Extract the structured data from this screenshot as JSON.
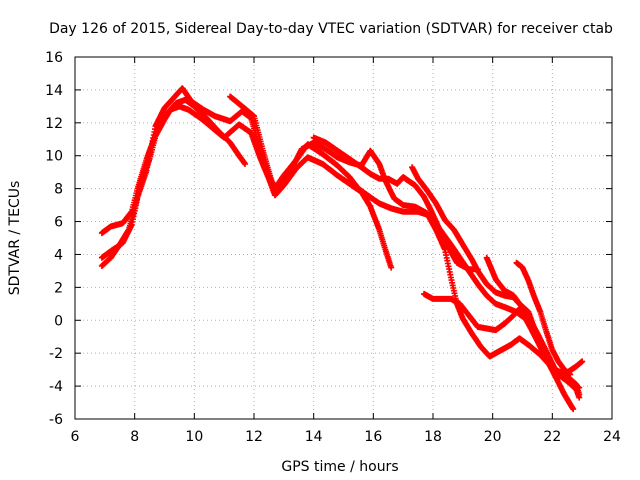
{
  "chart_data": {
    "type": "scatter",
    "title": "Day 126 of 2015, Sidereal Day-to-day VTEC variation (SDTVAR) for receiver ctab",
    "xlabel": "GPS time / hours",
    "ylabel": "SDTVAR / TECUs",
    "xlim": [
      6,
      24
    ],
    "ylim": [
      -6,
      16
    ],
    "xticks": [
      6,
      8,
      10,
      12,
      14,
      16,
      18,
      20,
      22,
      24
    ],
    "yticks": [
      -6,
      -4,
      -2,
      0,
      2,
      4,
      6,
      8,
      10,
      12,
      14,
      16
    ],
    "grid": true,
    "marker": "+",
    "color": "#ff0000",
    "series": [
      {
        "name": "s1",
        "points": [
          [
            6.9,
            3.3
          ],
          [
            7.2,
            3.8
          ],
          [
            7.5,
            4.6
          ],
          [
            7.8,
            5.5
          ],
          [
            8.0,
            6.8
          ],
          [
            8.2,
            8.3
          ],
          [
            8.5,
            9.8
          ],
          [
            8.7,
            11.2
          ],
          [
            9.0,
            12.2
          ],
          [
            9.2,
            12.8
          ],
          [
            9.5,
            13.0
          ],
          [
            9.8,
            12.8
          ],
          [
            10.2,
            12.3
          ],
          [
            10.6,
            11.7
          ],
          [
            11.0,
            11.1
          ],
          [
            11.5,
            11.9
          ],
          [
            11.9,
            11.4
          ],
          [
            12.2,
            9.9
          ],
          [
            12.5,
            8.6
          ],
          [
            12.7,
            7.6
          ],
          [
            13.0,
            8.2
          ],
          [
            13.4,
            9.2
          ],
          [
            13.8,
            9.9
          ],
          [
            14.3,
            9.5
          ],
          [
            14.8,
            8.8
          ],
          [
            15.2,
            8.3
          ],
          [
            15.6,
            7.8
          ],
          [
            15.9,
            6.9
          ],
          [
            16.2,
            5.5
          ],
          [
            16.4,
            4.3
          ],
          [
            16.6,
            3.2
          ]
        ]
      },
      {
        "name": "s2",
        "points": [
          [
            6.9,
            3.8
          ],
          [
            7.2,
            4.2
          ],
          [
            7.6,
            4.7
          ],
          [
            7.9,
            5.8
          ],
          [
            8.1,
            7.5
          ],
          [
            8.4,
            9.1
          ],
          [
            8.7,
            11.8
          ],
          [
            9.0,
            12.9
          ],
          [
            9.3,
            13.5
          ],
          [
            9.6,
            14.1
          ],
          [
            9.9,
            13.3
          ],
          [
            10.3,
            12.8
          ],
          [
            10.7,
            12.4
          ],
          [
            11.2,
            12.1
          ],
          [
            11.6,
            12.7
          ],
          [
            11.9,
            12.3
          ],
          [
            12.2,
            10.4
          ],
          [
            12.5,
            8.8
          ],
          [
            12.7,
            8.0
          ],
          [
            13.0,
            8.8
          ],
          [
            13.4,
            9.7
          ],
          [
            13.8,
            10.7
          ],
          [
            14.3,
            10.1
          ],
          [
            14.8,
            9.4
          ],
          [
            15.2,
            8.7
          ],
          [
            15.5,
            8.0
          ],
          [
            15.8,
            7.6
          ],
          [
            16.2,
            7.1
          ],
          [
            16.6,
            6.8
          ],
          [
            17.0,
            6.6
          ],
          [
            17.5,
            6.6
          ],
          [
            18.0,
            6.3
          ],
          [
            18.2,
            5.3
          ],
          [
            18.5,
            4.5
          ],
          [
            18.8,
            3.5
          ],
          [
            19.2,
            3.1
          ],
          [
            19.5,
            3.1
          ]
        ]
      },
      {
        "name": "s3",
        "points": [
          [
            6.9,
            5.3
          ],
          [
            7.2,
            5.7
          ],
          [
            7.6,
            5.9
          ],
          [
            7.9,
            6.6
          ],
          [
            8.1,
            8.0
          ],
          [
            8.4,
            9.8
          ],
          [
            8.7,
            11.3
          ],
          [
            9.0,
            12.4
          ],
          [
            9.4,
            13.2
          ],
          [
            9.7,
            13.4
          ],
          [
            10.0,
            13.0
          ],
          [
            10.4,
            12.3
          ],
          [
            10.8,
            11.5
          ],
          [
            11.2,
            10.8
          ],
          [
            11.5,
            10.0
          ],
          [
            11.7,
            9.5
          ]
        ]
      },
      {
        "name": "s4",
        "points": [
          [
            11.2,
            13.6
          ],
          [
            11.6,
            13.0
          ],
          [
            12.0,
            12.4
          ],
          [
            12.3,
            10.3
          ],
          [
            12.6,
            8.4
          ],
          [
            12.8,
            8.0
          ],
          [
            13.2,
            9.0
          ],
          [
            13.6,
            10.4
          ],
          [
            14.0,
            10.8
          ],
          [
            14.4,
            10.4
          ],
          [
            14.8,
            9.9
          ],
          [
            15.2,
            9.6
          ],
          [
            15.6,
            9.4
          ],
          [
            15.9,
            10.3
          ],
          [
            16.2,
            9.5
          ],
          [
            16.4,
            8.5
          ],
          [
            16.7,
            7.4
          ],
          [
            17.0,
            7.0
          ],
          [
            17.4,
            6.9
          ],
          [
            17.8,
            6.5
          ],
          [
            18.1,
            5.5
          ],
          [
            18.4,
            4.3
          ],
          [
            18.6,
            2.6
          ],
          [
            18.8,
            1.0
          ],
          [
            19.0,
            0.1
          ],
          [
            19.3,
            -0.8
          ],
          [
            19.6,
            -1.6
          ],
          [
            19.9,
            -2.2
          ],
          [
            20.2,
            -1.9
          ],
          [
            20.6,
            -1.5
          ],
          [
            20.9,
            -1.1
          ],
          [
            21.2,
            -1.5
          ],
          [
            21.6,
            -2.1
          ],
          [
            22.0,
            -2.9
          ],
          [
            22.4,
            -3.3
          ],
          [
            22.8,
            -2.8
          ],
          [
            23.0,
            -2.5
          ]
        ]
      },
      {
        "name": "s5",
        "points": [
          [
            14.0,
            11.1
          ],
          [
            14.4,
            10.8
          ],
          [
            14.8,
            10.3
          ],
          [
            15.2,
            9.8
          ],
          [
            15.6,
            9.3
          ],
          [
            15.9,
            8.9
          ],
          [
            16.2,
            8.6
          ],
          [
            16.5,
            8.6
          ],
          [
            16.8,
            8.3
          ],
          [
            17.0,
            8.7
          ],
          [
            17.4,
            8.2
          ],
          [
            17.7,
            7.5
          ],
          [
            17.9,
            6.8
          ],
          [
            18.2,
            5.6
          ],
          [
            18.6,
            4.6
          ],
          [
            18.9,
            3.8
          ],
          [
            19.2,
            3.0
          ],
          [
            19.5,
            2.2
          ],
          [
            19.8,
            1.5
          ],
          [
            20.1,
            1.0
          ],
          [
            20.4,
            0.8
          ],
          [
            20.8,
            0.5
          ],
          [
            21.1,
            0.1
          ],
          [
            21.4,
            -0.9
          ],
          [
            21.7,
            -2.0
          ],
          [
            22.1,
            -3.4
          ],
          [
            22.4,
            -4.5
          ],
          [
            22.6,
            -5.1
          ],
          [
            22.7,
            -5.4
          ]
        ]
      },
      {
        "name": "s6",
        "points": [
          [
            17.3,
            9.3
          ],
          [
            17.5,
            8.6
          ],
          [
            17.8,
            7.9
          ],
          [
            18.1,
            7.1
          ],
          [
            18.4,
            6.1
          ],
          [
            18.7,
            5.5
          ],
          [
            19.0,
            4.6
          ],
          [
            19.3,
            3.7
          ],
          [
            19.5,
            3.0
          ],
          [
            19.8,
            2.2
          ],
          [
            20.1,
            1.7
          ],
          [
            20.4,
            1.5
          ],
          [
            20.7,
            1.4
          ],
          [
            21.0,
            0.8
          ],
          [
            21.2,
            0.0
          ],
          [
            21.4,
            -0.9
          ],
          [
            21.7,
            -1.8
          ],
          [
            21.9,
            -2.6
          ],
          [
            22.2,
            -3.2
          ],
          [
            22.5,
            -3.7
          ],
          [
            22.8,
            -4.0
          ],
          [
            22.9,
            -4.1
          ]
        ]
      },
      {
        "name": "s7",
        "points": [
          [
            17.7,
            1.6
          ],
          [
            18.0,
            1.3
          ],
          [
            18.3,
            1.3
          ],
          [
            18.6,
            1.3
          ],
          [
            18.9,
            1.0
          ],
          [
            19.2,
            0.3
          ],
          [
            19.5,
            -0.4
          ],
          [
            19.8,
            -0.5
          ],
          [
            20.1,
            -0.6
          ],
          [
            20.4,
            -0.2
          ],
          [
            20.7,
            0.3
          ],
          [
            20.9,
            0.7
          ],
          [
            21.2,
            0.2
          ],
          [
            21.5,
            -0.8
          ],
          [
            21.8,
            -1.9
          ],
          [
            22.1,
            -3.0
          ],
          [
            22.5,
            -3.4
          ],
          [
            22.8,
            -3.9
          ],
          [
            22.9,
            -4.5
          ]
        ]
      },
      {
        "name": "s8",
        "points": [
          [
            19.8,
            3.8
          ],
          [
            20.1,
            2.5
          ],
          [
            20.4,
            1.8
          ],
          [
            20.7,
            1.5
          ],
          [
            20.9,
            1.0
          ],
          [
            21.2,
            0.5
          ],
          [
            21.4,
            -0.5
          ],
          [
            21.6,
            -1.3
          ],
          [
            21.9,
            -2.5
          ],
          [
            22.2,
            -3.3
          ],
          [
            22.5,
            -3.7
          ],
          [
            22.8,
            -4.2
          ],
          [
            22.9,
            -4.7
          ]
        ]
      },
      {
        "name": "s9",
        "points": [
          [
            20.8,
            3.5
          ],
          [
            21.0,
            3.2
          ],
          [
            21.2,
            2.4
          ],
          [
            21.4,
            1.4
          ],
          [
            21.6,
            0.5
          ],
          [
            21.8,
            -0.7
          ],
          [
            22.0,
            -1.8
          ],
          [
            22.2,
            -2.5
          ],
          [
            22.4,
            -3.0
          ],
          [
            22.6,
            -3.3
          ]
        ]
      }
    ]
  }
}
